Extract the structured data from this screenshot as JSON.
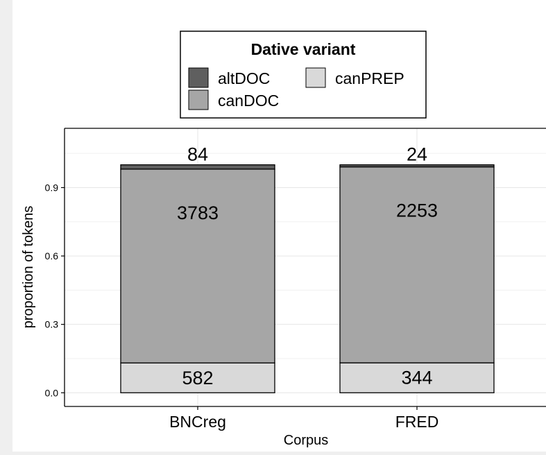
{
  "chart_data": {
    "type": "bar",
    "stacked": true,
    "categories": [
      "BNCreg",
      "FRED"
    ],
    "series": [
      {
        "name": "canPREP",
        "counts": [
          582,
          344
        ],
        "color": "#d9d9d9"
      },
      {
        "name": "canDOC",
        "counts": [
          3783,
          2253
        ],
        "color": "#a6a6a6"
      },
      {
        "name": "altDOC",
        "counts": [
          84,
          24
        ],
        "color": "#5f5f5f"
      }
    ],
    "xlabel": "Corpus",
    "ylabel": "proportion of tokens",
    "ylim": [
      -0.06,
      1.16
    ],
    "yticks": [
      "0.0",
      "0.3",
      "0.6",
      "0.9"
    ],
    "grid": true,
    "legend": {
      "title": "Dative variant",
      "placement": "top",
      "entries": [
        "altDOC",
        "canDOC",
        "canPREP"
      ]
    }
  }
}
